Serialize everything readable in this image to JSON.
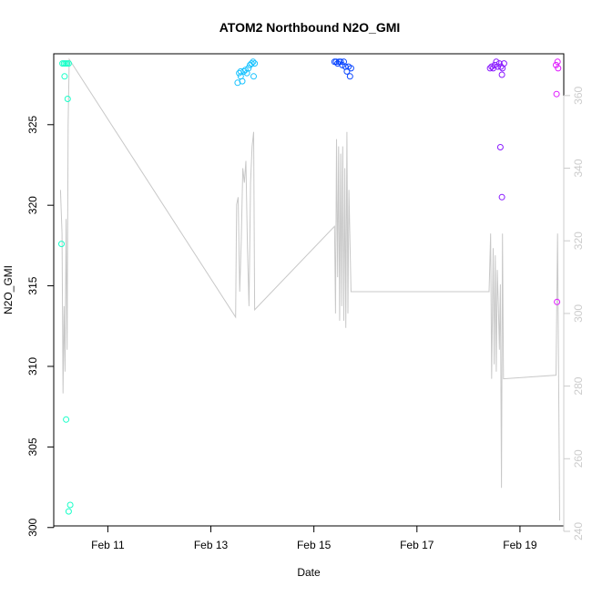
{
  "chart_data": {
    "type": "scatter",
    "title": "ATOM2 Northbound N2O_GMI",
    "xlabel": "Date",
    "ylabel": "N2O_GMI",
    "x_ticks": [
      "Feb 11",
      "Feb 13",
      "Feb 15",
      "Feb 17",
      "Feb 19"
    ],
    "x_tick_days": [
      11,
      13,
      15,
      17,
      19
    ],
    "xlim": [
      9.95,
      19.85
    ],
    "y_left": {
      "lim": [
        300.1,
        329.4
      ],
      "ticks": [
        300,
        305,
        310,
        315,
        320,
        325
      ]
    },
    "y_right": {
      "lim": [
        241.5,
        371.5
      ],
      "ticks": [
        240,
        260,
        280,
        300,
        320,
        340,
        360
      ]
    },
    "colors": {
      "axis": "#000000",
      "right_axis": "#cccccc",
      "line": "#c8c8c8"
    },
    "series": [
      {
        "kind": "points",
        "axis": "left",
        "points": [
          {
            "x": 10.12,
            "y": 328.8,
            "c": "#19ffc8"
          },
          {
            "x": 10.15,
            "y": 328.8,
            "c": "#19ffc8"
          },
          {
            "x": 10.18,
            "y": 328.8,
            "c": "#19ffc8"
          },
          {
            "x": 10.21,
            "y": 328.8,
            "c": "#19ffc8"
          },
          {
            "x": 10.24,
            "y": 328.8,
            "c": "#19ffc8"
          },
          {
            "x": 10.16,
            "y": 328.0,
            "c": "#19ffc8"
          },
          {
            "x": 10.22,
            "y": 326.6,
            "c": "#19ffc8"
          },
          {
            "x": 10.1,
            "y": 317.6,
            "c": "#19ffc8"
          },
          {
            "x": 10.19,
            "y": 306.7,
            "c": "#19ffc8"
          },
          {
            "x": 10.27,
            "y": 301.4,
            "c": "#19ffc8"
          },
          {
            "x": 10.24,
            "y": 301.0,
            "c": "#19ffc8"
          },
          {
            "x": 13.52,
            "y": 327.6,
            "c": "#19c3ff"
          },
          {
            "x": 13.55,
            "y": 328.2,
            "c": "#19c3ff"
          },
          {
            "x": 13.58,
            "y": 328.0,
            "c": "#19c3ff"
          },
          {
            "x": 13.61,
            "y": 327.7,
            "c": "#19c3ff"
          },
          {
            "x": 13.64,
            "y": 328.3,
            "c": "#19c3ff"
          },
          {
            "x": 13.67,
            "y": 328.4,
            "c": "#19c3ff"
          },
          {
            "x": 13.7,
            "y": 328.2,
            "c": "#19c3ff"
          },
          {
            "x": 13.73,
            "y": 328.5,
            "c": "#19c3ff"
          },
          {
            "x": 13.76,
            "y": 328.7,
            "c": "#19c3ff"
          },
          {
            "x": 13.79,
            "y": 328.8,
            "c": "#19c3ff"
          },
          {
            "x": 13.82,
            "y": 328.9,
            "c": "#19c3ff"
          },
          {
            "x": 13.85,
            "y": 328.8,
            "c": "#19c3ff"
          },
          {
            "x": 13.58,
            "y": 328.3,
            "c": "#19c3ff"
          },
          {
            "x": 13.83,
            "y": 328.0,
            "c": "#19c3ff"
          },
          {
            "x": 15.4,
            "y": 328.9,
            "c": "#0a46ff"
          },
          {
            "x": 15.43,
            "y": 328.9,
            "c": "#0a46ff"
          },
          {
            "x": 15.46,
            "y": 328.8,
            "c": "#0a46ff"
          },
          {
            "x": 15.49,
            "y": 328.9,
            "c": "#0a46ff"
          },
          {
            "x": 15.52,
            "y": 328.9,
            "c": "#0a46ff"
          },
          {
            "x": 15.55,
            "y": 328.7,
            "c": "#0a46ff"
          },
          {
            "x": 15.58,
            "y": 328.9,
            "c": "#0a46ff"
          },
          {
            "x": 15.61,
            "y": 328.6,
            "c": "#0a46ff"
          },
          {
            "x": 15.64,
            "y": 328.3,
            "c": "#0a46ff"
          },
          {
            "x": 15.67,
            "y": 328.6,
            "c": "#0a46ff"
          },
          {
            "x": 15.7,
            "y": 328.0,
            "c": "#0a46ff"
          },
          {
            "x": 15.72,
            "y": 328.5,
            "c": "#0a46ff"
          },
          {
            "x": 18.42,
            "y": 328.5,
            "c": "#8a1aff"
          },
          {
            "x": 18.45,
            "y": 328.6,
            "c": "#8a1aff"
          },
          {
            "x": 18.48,
            "y": 328.5,
            "c": "#8a1aff"
          },
          {
            "x": 18.51,
            "y": 328.7,
            "c": "#8a1aff"
          },
          {
            "x": 18.54,
            "y": 328.9,
            "c": "#8a1aff"
          },
          {
            "x": 18.57,
            "y": 328.6,
            "c": "#8a1aff"
          },
          {
            "x": 18.6,
            "y": 328.8,
            "c": "#8a1aff"
          },
          {
            "x": 18.63,
            "y": 328.6,
            "c": "#8a1aff"
          },
          {
            "x": 18.66,
            "y": 328.5,
            "c": "#8a1aff"
          },
          {
            "x": 18.69,
            "y": 328.8,
            "c": "#8a1aff"
          },
          {
            "x": 18.65,
            "y": 328.1,
            "c": "#8a1aff"
          },
          {
            "x": 18.62,
            "y": 323.6,
            "c": "#8a1aff"
          },
          {
            "x": 18.65,
            "y": 320.5,
            "c": "#8a1aff"
          },
          {
            "x": 19.7,
            "y": 328.7,
            "c": "#e01aff"
          },
          {
            "x": 19.73,
            "y": 328.9,
            "c": "#e01aff"
          },
          {
            "x": 19.74,
            "y": 328.5,
            "c": "#e01aff"
          },
          {
            "x": 19.71,
            "y": 326.9,
            "c": "#e01aff"
          },
          {
            "x": 19.72,
            "y": 314.0,
            "c": "#e01aff"
          }
        ]
      },
      {
        "kind": "line",
        "axis": "right",
        "points": [
          [
            10.08,
            334
          ],
          [
            10.11,
            322
          ],
          [
            10.13,
            278
          ],
          [
            10.15,
            302
          ],
          [
            10.17,
            284
          ],
          [
            10.19,
            326
          ],
          [
            10.21,
            290
          ],
          [
            10.23,
            352
          ],
          [
            10.25,
            370
          ],
          [
            13.48,
            299
          ],
          [
            13.5,
            330
          ],
          [
            13.53,
            332
          ],
          [
            13.56,
            306
          ],
          [
            13.59,
            320
          ],
          [
            13.62,
            340
          ],
          [
            13.65,
            336
          ],
          [
            13.68,
            342
          ],
          [
            13.71,
            318
          ],
          [
            13.74,
            302
          ],
          [
            13.77,
            336
          ],
          [
            13.8,
            346
          ],
          [
            13.83,
            350
          ],
          [
            13.85,
            301
          ],
          [
            15.4,
            324
          ],
          [
            15.42,
            300
          ],
          [
            15.44,
            348
          ],
          [
            15.46,
            310
          ],
          [
            15.48,
            346
          ],
          [
            15.5,
            298
          ],
          [
            15.52,
            344
          ],
          [
            15.54,
            302
          ],
          [
            15.56,
            346
          ],
          [
            15.58,
            298
          ],
          [
            15.6,
            340
          ],
          [
            15.62,
            296
          ],
          [
            15.64,
            350
          ],
          [
            15.66,
            300
          ],
          [
            15.68,
            334
          ],
          [
            15.72,
            306
          ],
          [
            18.4,
            306
          ],
          [
            18.43,
            322
          ],
          [
            18.45,
            282
          ],
          [
            18.48,
            318
          ],
          [
            18.5,
            286
          ],
          [
            18.52,
            316
          ],
          [
            18.54,
            284
          ],
          [
            18.56,
            312
          ],
          [
            18.58,
            302
          ],
          [
            18.6,
            290
          ],
          [
            18.62,
            308
          ],
          [
            18.64,
            252
          ],
          [
            18.66,
            322
          ],
          [
            18.68,
            282
          ],
          [
            19.7,
            283
          ],
          [
            19.73,
            322
          ],
          [
            19.77,
            243
          ]
        ]
      }
    ]
  }
}
